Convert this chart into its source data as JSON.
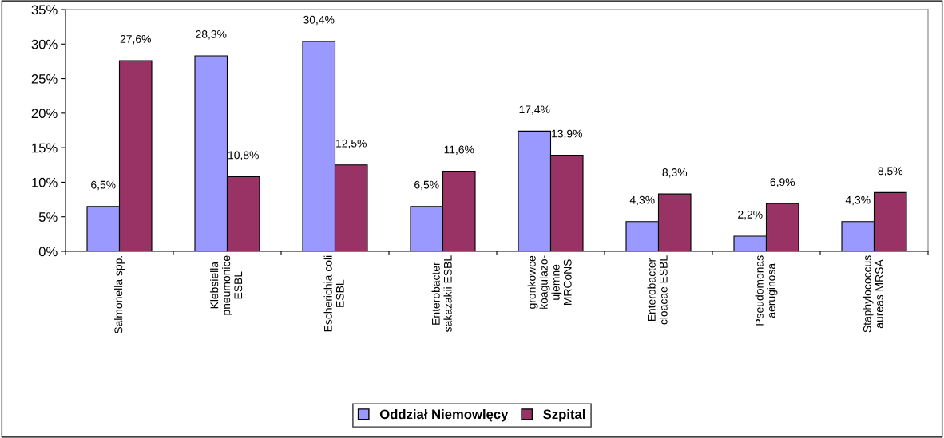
{
  "chart_data": {
    "type": "bar",
    "categories": [
      "Salmonella spp.",
      "Klebsiella\npneumonice\nESBL",
      "Escherichia coli\nESBL",
      "Enterobacter\nsakazakii ESBL",
      "gronkowce\nkoagulazo-\nujemne\nMRCoNS",
      "Enterobacter\ncloacae ESBL",
      "Pseudomonas\naeruginosa",
      "Staphylococcus\naureas MRSA"
    ],
    "series": [
      {
        "name": "Oddział Niemowlęcy",
        "color": "#9999ff",
        "values": [
          6.5,
          28.3,
          30.4,
          6.5,
          17.4,
          4.3,
          2.2,
          4.3
        ],
        "value_labels": [
          "6,5%",
          "28,3%",
          "30,4%",
          "6,5%",
          "17,4%",
          "4,3%",
          "2,2%",
          "4,3%"
        ]
      },
      {
        "name": "Szpital",
        "color": "#993366",
        "values": [
          27.6,
          10.8,
          12.5,
          11.6,
          13.9,
          8.3,
          6.9,
          8.5
        ],
        "value_labels": [
          "27,6%",
          "10,8%",
          "12,5%",
          "11,6%",
          "13,9%",
          "8,3%",
          "6,9%",
          "8,5%"
        ]
      }
    ],
    "ylim": [
      0,
      35
    ],
    "yticks": [
      {
        "value": 0,
        "label": "0%"
      },
      {
        "value": 5,
        "label": "5%"
      },
      {
        "value": 10,
        "label": "10%"
      },
      {
        "value": 15,
        "label": "15%"
      },
      {
        "value": 20,
        "label": "20%"
      },
      {
        "value": 25,
        "label": "25%"
      },
      {
        "value": 30,
        "label": "30%"
      },
      {
        "value": 35,
        "label": "35%"
      }
    ],
    "grid": false,
    "legend": "bottom"
  }
}
